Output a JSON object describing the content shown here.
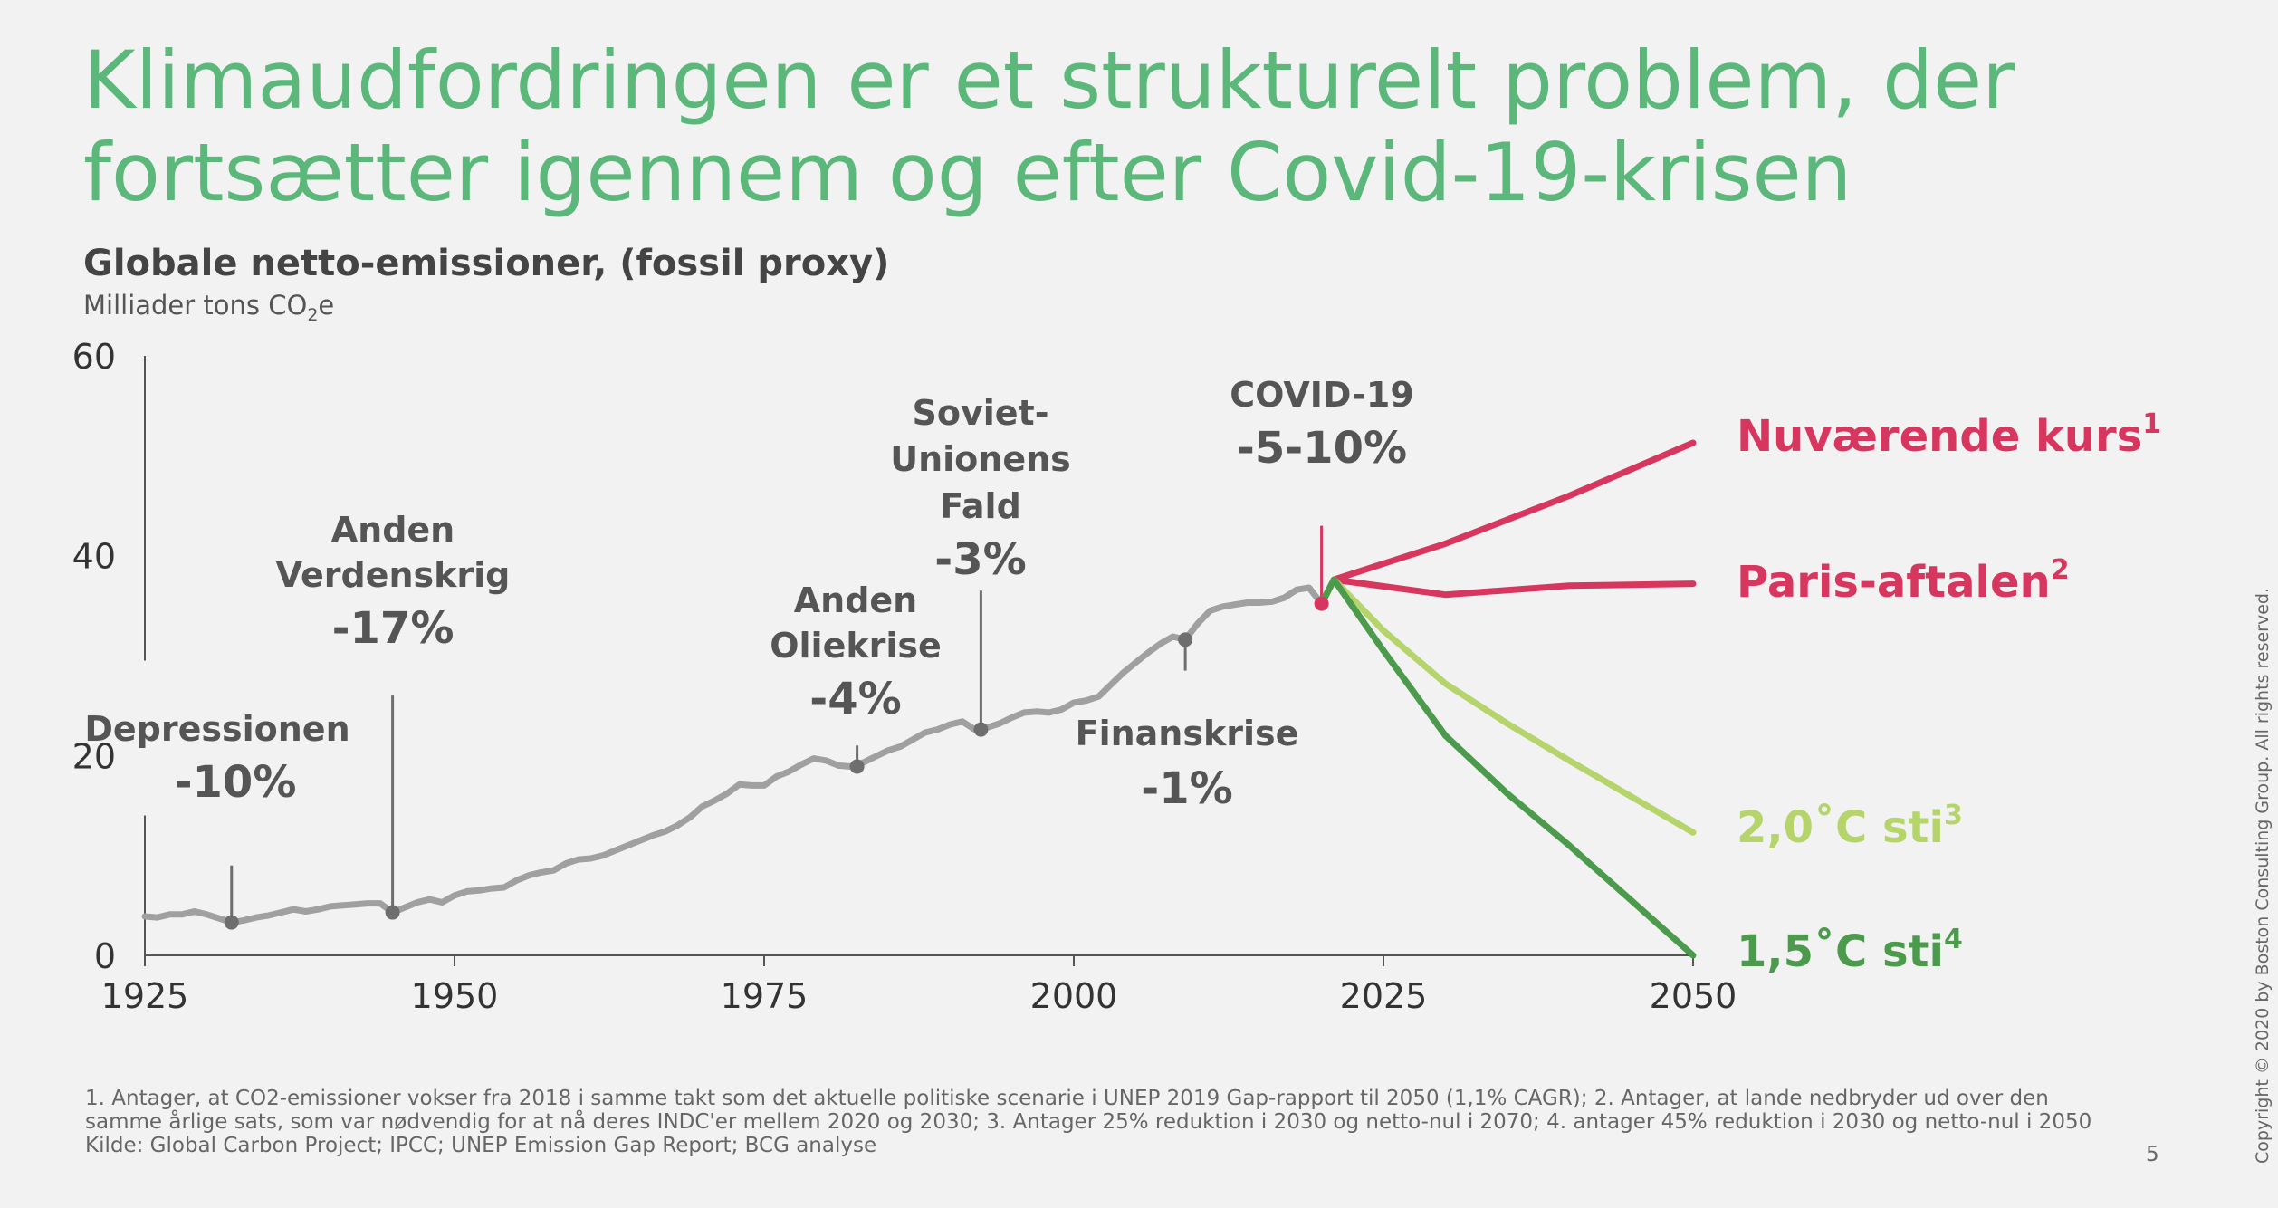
{
  "slide": {
    "title_line1": "Klimaudfordringen er et strukturelt problem, der",
    "title_line2": "fortsætter igennem og efter Covid-19-krisen",
    "footnote_line1": "1. Antager, at CO2-emissioner vokser fra 2018 i samme takt som det aktuelle politiske scenarie i UNEP 2019 Gap-rapport til 2050 (1,1% CAGR); 2. Antager, at lande nedbryder ud over den",
    "footnote_line2": "samme årlige sats, som var nødvendig for at nå deres INDC'er mellem 2020 og 2030; 3. Antager 25% reduktion i 2030 og netto-nul i 2070; 4. antager 45% reduktion i 2030 og netto-nul i 2050",
    "source": "Kilde: Global Carbon Project; IPCC; UNEP Emission Gap Report; BCG analyse",
    "page_number": "5",
    "copyright": "Copyright © 2020 by Boston Consulting Group. All rights reserved."
  },
  "chart_data": {
    "type": "line",
    "title": "Globale netto-emissioner, (fossil proxy)",
    "ylabel_main": "Milliader tons CO",
    "ylabel_sub": "2",
    "ylabel_tail": "e",
    "xlim": [
      1925,
      2050
    ],
    "ylim": [
      0,
      60
    ],
    "x_ticks": [
      "1925",
      "1950",
      "1975",
      "2000",
      "2025",
      "2050"
    ],
    "y_ticks": [
      "0",
      "20",
      "40",
      "60"
    ],
    "grid": false,
    "colors": {
      "historical": "#a0a0a0",
      "current_course": "#d7365e",
      "paris": "#d7365e",
      "two_degree": "#b5d46c",
      "one_five_degree": "#4c9a4c",
      "annotation_text": "#555555",
      "marker": "#6e6e6e",
      "covid_marker": "#d7365e"
    },
    "historical": {
      "x": [
        1925,
        1926,
        1927,
        1928,
        1929,
        1930,
        1931,
        1932,
        1933,
        1934,
        1935,
        1936,
        1937,
        1938,
        1939,
        1940,
        1941,
        1942,
        1943,
        1944,
        1945,
        1946,
        1947,
        1948,
        1949,
        1950,
        1951,
        1952,
        1953,
        1954,
        1955,
        1956,
        1957,
        1958,
        1959,
        1960,
        1961,
        1962,
        1963,
        1964,
        1965,
        1966,
        1967,
        1968,
        1969,
        1970,
        1971,
        1972,
        1973,
        1974,
        1975,
        1976,
        1977,
        1978,
        1979,
        1980,
        1981,
        1982,
        1983,
        1984,
        1985,
        1986,
        1987,
        1988,
        1989,
        1990,
        1991,
        1992,
        1993,
        1994,
        1995,
        1996,
        1997,
        1998,
        1999,
        2000,
        2001,
        2002,
        2003,
        2004,
        2005,
        2006,
        2007,
        2008,
        2009,
        2010,
        2011,
        2012,
        2013,
        2014,
        2015,
        2016,
        2017,
        2018,
        2019,
        2020
      ],
      "y": [
        3.9,
        3.8,
        4.1,
        4.1,
        4.4,
        4.1,
        3.7,
        3.3,
        3.5,
        3.8,
        4.0,
        4.3,
        4.6,
        4.4,
        4.6,
        4.9,
        5.0,
        5.1,
        5.2,
        5.2,
        4.3,
        4.8,
        5.3,
        5.6,
        5.3,
        6.0,
        6.4,
        6.5,
        6.7,
        6.8,
        7.5,
        8.0,
        8.3,
        8.5,
        9.2,
        9.6,
        9.7,
        10.0,
        10.5,
        11.0,
        11.5,
        12.0,
        12.4,
        13.0,
        13.8,
        14.9,
        15.5,
        16.2,
        17.1,
        17.0,
        17.0,
        17.9,
        18.4,
        19.1,
        19.7,
        19.5,
        19.0,
        18.9,
        19.3,
        19.9,
        20.5,
        20.9,
        21.6,
        22.3,
        22.6,
        23.1,
        23.4,
        22.6,
        22.8,
        23.2,
        23.8,
        24.3,
        24.4,
        24.3,
        24.6,
        25.3,
        25.5,
        25.9,
        27.1,
        28.3,
        29.3,
        30.3,
        31.2,
        31.9,
        31.6,
        33.2,
        34.5,
        34.9,
        35.1,
        35.3,
        35.3,
        35.4,
        35.8,
        36.6,
        36.8,
        35.2
      ]
    },
    "scenarios": [
      {
        "key": "current_course",
        "label": "Nuværende kurs",
        "sup": "1",
        "x": [
          2020,
          2021,
          2030,
          2040,
          2050
        ],
        "y": [
          35.2,
          37.6,
          41.2,
          46.0,
          51.3
        ]
      },
      {
        "key": "paris",
        "label": "Paris-aftalen",
        "sup": "2",
        "x": [
          2020,
          2021,
          2030,
          2040,
          2050
        ],
        "y": [
          35.2,
          37.6,
          36.1,
          37.0,
          37.2
        ]
      },
      {
        "key": "two_degree",
        "label": "2,0˚C sti",
        "sup": "3",
        "x": [
          2020,
          2021,
          2025,
          2030,
          2035,
          2040,
          2045,
          2050
        ],
        "y": [
          35.2,
          37.6,
          32.5,
          27.2,
          23.2,
          19.5,
          15.9,
          12.3
        ]
      },
      {
        "key": "one_five_degree",
        "label": "1,5˚C sti",
        "sup": "4",
        "x": [
          2020,
          2021,
          2025,
          2030,
          2035,
          2040,
          2045,
          2050
        ],
        "y": [
          35.2,
          37.6,
          30.5,
          22.0,
          16.2,
          11.0,
          5.5,
          0.0
        ]
      }
    ],
    "events": [
      {
        "name": "Depressionen",
        "change": "-10%",
        "x": 1932,
        "y": 3.3,
        "stem_top_y": 9.0
      },
      {
        "name": "Anden Verdenskrig",
        "change": "-17%",
        "x": 1945,
        "y": 4.3,
        "stem_top_y": 26.0
      },
      {
        "name": "Anden Oliekrise",
        "change": "-4%",
        "x": 1982.5,
        "y": 18.9,
        "stem_top_y": 21.0
      },
      {
        "name": "Soviet-Unionens Fald",
        "change": "-3%",
        "x": 1992.5,
        "y": 22.6,
        "stem_top_y": 36.5
      },
      {
        "name": "Finanskrise",
        "change": "-1%",
        "x": 2009,
        "y": 31.6,
        "stem_bottom_y": 28.5
      },
      {
        "name": "COVID-19",
        "change": "-5-10%",
        "x": 2020,
        "y": 35.2,
        "stem_top_y": 43.0
      }
    ],
    "event_labels": {
      "depression": "Depressionen",
      "ww2_line1": "Anden",
      "ww2_line2": "Verdenskrig",
      "oil_line1": "Anden",
      "oil_line2": "Oliekrise",
      "soviet_line1": "Soviet-",
      "soviet_line2": "Unionens",
      "soviet_line3": "Fald",
      "finance": "Finanskrise",
      "covid": "COVID-19"
    }
  }
}
